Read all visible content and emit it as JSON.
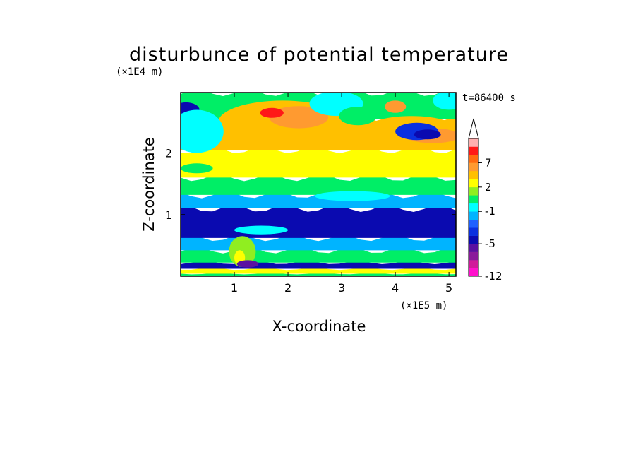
{
  "chart_data": {
    "type": "heatmap",
    "title": "disturbunce of potential temperature",
    "xlabel": "X-coordinate",
    "ylabel": "Z-coordinate",
    "x_unit": "(×1E5 m)",
    "y_unit": "(×1E4 m)",
    "time_label": "t=86400 s",
    "xlim": [
      0,
      5.13
    ],
    "ylim": [
      0,
      2.98
    ],
    "x_ticks": [
      1,
      2,
      3,
      4,
      5
    ],
    "y_ticks": [
      1,
      2
    ],
    "colorbar": {
      "levels": [
        -12,
        -11,
        -9,
        -7,
        -5,
        -4,
        -3,
        -2,
        -1,
        0,
        1,
        2,
        3,
        4,
        7,
        8,
        9,
        10
      ],
      "labeled_ticks": [
        "7",
        "2",
        "-1",
        "-5",
        "-12"
      ],
      "labeled_values": [
        7,
        2,
        -1,
        -5,
        -12
      ],
      "colors": [
        "#ff10cc",
        "#d01a9a",
        "#8a1a9a",
        "#5a10a0",
        "#0a0ab0",
        "#0a30e0",
        "#1e60ff",
        "#00b4ff",
        "#00ffff",
        "#00ee66",
        "#90ee20",
        "#ffff00",
        "#ffc000",
        "#ff9a30",
        "#ff6a10",
        "#ff1818",
        "#ffb0b0"
      ],
      "extend": "max"
    },
    "bands": [
      {
        "z0": 0.0,
        "z1": 0.04,
        "value": 0.5
      },
      {
        "z0": 0.04,
        "z1": 0.12,
        "value": 2.5
      },
      {
        "z0": 0.12,
        "z1": 0.22,
        "value": -5
      },
      {
        "z0": 0.22,
        "z1": 0.42,
        "value": 0.5
      },
      {
        "z0": 0.42,
        "z1": 0.62,
        "value": -1.5
      },
      {
        "z0": 0.62,
        "z1": 1.1,
        "value": -4.5
      },
      {
        "z0": 1.1,
        "z1": 1.32,
        "value": -1.5
      },
      {
        "z0": 1.32,
        "z1": 1.6,
        "value": 0.5
      },
      {
        "z0": 1.6,
        "z1": 2.05,
        "value": 2.5
      },
      {
        "z0": 2.05,
        "z1": 2.55,
        "value": 3.5
      },
      {
        "z0": 2.55,
        "z1": 2.98,
        "value": 0.5
      }
    ],
    "blobs": [
      {
        "x": 1.9,
        "z": 2.5,
        "rx": 1.2,
        "rz": 0.35,
        "value": 3.5
      },
      {
        "x": 2.2,
        "z": 2.58,
        "rx": 0.55,
        "rz": 0.18,
        "value": 5.5
      },
      {
        "x": 1.7,
        "z": 2.65,
        "rx": 0.22,
        "rz": 0.08,
        "value": 8
      },
      {
        "x": 4.3,
        "z": 2.35,
        "rx": 0.9,
        "rz": 0.25,
        "value": 3.5
      },
      {
        "x": 4.7,
        "z": 2.28,
        "rx": 0.5,
        "rz": 0.12,
        "value": 5.5
      },
      {
        "x": 4.4,
        "z": 2.35,
        "rx": 0.4,
        "rz": 0.14,
        "value": -3.5
      },
      {
        "x": 4.6,
        "z": 2.3,
        "rx": 0.25,
        "rz": 0.08,
        "value": -4.5
      },
      {
        "x": 0.1,
        "z": 2.7,
        "rx": 0.25,
        "rz": 0.12,
        "value": -4.5
      },
      {
        "x": 0.3,
        "z": 2.35,
        "rx": 0.5,
        "rz": 0.35,
        "value": -0.5
      },
      {
        "x": 2.9,
        "z": 2.8,
        "rx": 0.5,
        "rz": 0.2,
        "value": -0.5
      },
      {
        "x": 3.3,
        "z": 2.6,
        "rx": 0.35,
        "rz": 0.15,
        "value": 0.5
      },
      {
        "x": 4.0,
        "z": 2.75,
        "rx": 0.2,
        "rz": 0.1,
        "value": 5.5
      },
      {
        "x": 5.0,
        "z": 2.85,
        "rx": 0.3,
        "rz": 0.15,
        "value": -0.5
      },
      {
        "x": 1.5,
        "z": 0.75,
        "rx": 0.5,
        "rz": 0.07,
        "value": -0.5
      },
      {
        "x": 3.2,
        "z": 1.3,
        "rx": 0.7,
        "rz": 0.08,
        "value": -0.5
      },
      {
        "x": 1.15,
        "z": 0.4,
        "rx": 0.25,
        "rz": 0.25,
        "value": 1.5
      },
      {
        "x": 1.1,
        "z": 0.3,
        "rx": 0.1,
        "rz": 0.12,
        "value": 2.5
      },
      {
        "x": 1.25,
        "z": 0.2,
        "rx": 0.2,
        "rz": 0.06,
        "value": -5.5
      },
      {
        "x": 0.3,
        "z": 1.75,
        "rx": 0.3,
        "rz": 0.08,
        "value": 0.5
      }
    ]
  }
}
